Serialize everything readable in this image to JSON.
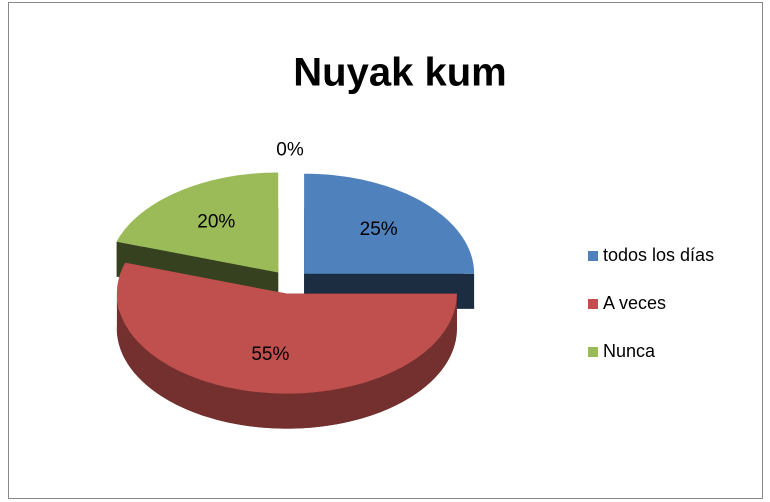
{
  "chart_data": {
    "type": "pie",
    "title": "Nuyak kum",
    "categories": [
      "todos los días",
      "A veces",
      "Nunca",
      null
    ],
    "values": [
      25,
      55,
      20,
      0
    ],
    "value_labels": [
      "25%",
      "55%",
      "20%",
      "0%"
    ],
    "colors": [
      "#4f81bd",
      "#c0504d",
      "#9bbb59",
      "#8064a2"
    ],
    "legend": "right"
  }
}
